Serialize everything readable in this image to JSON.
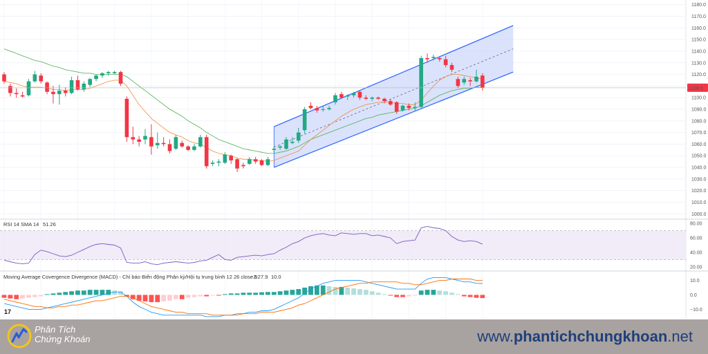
{
  "chart_data": [
    {
      "type": "candlestick",
      "price_axis": {
        "ticks": [
          1000.0,
          1010.0,
          1020.0,
          1030.0,
          1040.0,
          1050.0,
          1060.0,
          1070.0,
          1080.0,
          1090.0,
          1100.0,
          1110.0,
          1120.0,
          1130.0,
          1140.0,
          1150.0,
          1160.0,
          1170.0,
          1180.0
        ],
        "range": [
          996,
          1184
        ],
        "last_price_label": "1108.5",
        "last_price": 1108.5,
        "last_price_color": "#f23645"
      },
      "candles": [
        {
          "o": 1120,
          "h": 1122,
          "l": 1112,
          "c": 1114
        },
        {
          "o": 1110,
          "h": 1112,
          "l": 1101,
          "c": 1104
        },
        {
          "o": 1104,
          "h": 1108,
          "l": 1100,
          "c": 1103
        },
        {
          "o": 1102,
          "h": 1105,
          "l": 1100,
          "c": 1101
        },
        {
          "o": 1102,
          "h": 1116,
          "l": 1101,
          "c": 1114
        },
        {
          "o": 1114,
          "h": 1123,
          "l": 1113,
          "c": 1120
        },
        {
          "o": 1119,
          "h": 1121,
          "l": 1112,
          "c": 1114
        },
        {
          "o": 1113,
          "h": 1114,
          "l": 1103,
          "c": 1105
        },
        {
          "o": 1105,
          "h": 1110,
          "l": 1095,
          "c": 1103
        },
        {
          "o": 1103,
          "h": 1111,
          "l": 1094,
          "c": 1106
        },
        {
          "o": 1106,
          "h": 1109,
          "l": 1101,
          "c": 1104
        },
        {
          "o": 1104,
          "h": 1118,
          "l": 1103,
          "c": 1115
        },
        {
          "o": 1115,
          "h": 1119,
          "l": 1106,
          "c": 1107
        },
        {
          "o": 1107,
          "h": 1114,
          "l": 1105,
          "c": 1112
        },
        {
          "o": 1111,
          "h": 1117,
          "l": 1109,
          "c": 1116
        },
        {
          "o": 1116,
          "h": 1120,
          "l": 1114,
          "c": 1119
        },
        {
          "o": 1119,
          "h": 1122,
          "l": 1117,
          "c": 1121
        },
        {
          "o": 1121,
          "h": 1123,
          "l": 1119,
          "c": 1122
        },
        {
          "o": 1121,
          "h": 1123,
          "l": 1120,
          "c": 1122
        },
        {
          "o": 1122,
          "h": 1123,
          "l": 1110,
          "c": 1112
        },
        {
          "o": 1099,
          "h": 1101,
          "l": 1062,
          "c": 1066
        },
        {
          "o": 1066,
          "h": 1075,
          "l": 1060,
          "c": 1064
        },
        {
          "o": 1064,
          "h": 1067,
          "l": 1058,
          "c": 1062
        },
        {
          "o": 1064,
          "h": 1073,
          "l": 1060,
          "c": 1067
        },
        {
          "o": 1066,
          "h": 1077,
          "l": 1051,
          "c": 1058
        },
        {
          "o": 1059,
          "h": 1070,
          "l": 1056,
          "c": 1061
        },
        {
          "o": 1061,
          "h": 1066,
          "l": 1058,
          "c": 1060
        },
        {
          "o": 1060,
          "h": 1064,
          "l": 1052,
          "c": 1054
        },
        {
          "o": 1056,
          "h": 1068,
          "l": 1055,
          "c": 1066
        },
        {
          "o": 1061,
          "h": 1063,
          "l": 1057,
          "c": 1058
        },
        {
          "o": 1058,
          "h": 1059,
          "l": 1054,
          "c": 1055
        },
        {
          "o": 1055,
          "h": 1060,
          "l": 1054,
          "c": 1058
        },
        {
          "o": 1058,
          "h": 1068,
          "l": 1057,
          "c": 1066
        },
        {
          "o": 1066,
          "h": 1068,
          "l": 1039,
          "c": 1041
        },
        {
          "o": 1043,
          "h": 1046,
          "l": 1041,
          "c": 1044
        },
        {
          "o": 1044,
          "h": 1047,
          "l": 1041,
          "c": 1045
        },
        {
          "o": 1044,
          "h": 1053,
          "l": 1043,
          "c": 1051
        },
        {
          "o": 1050,
          "h": 1051,
          "l": 1043,
          "c": 1046
        },
        {
          "o": 1047,
          "h": 1048,
          "l": 1036,
          "c": 1039
        },
        {
          "o": 1042,
          "h": 1044,
          "l": 1039,
          "c": 1041
        },
        {
          "o": 1043,
          "h": 1049,
          "l": 1042,
          "c": 1047
        },
        {
          "o": 1047,
          "h": 1049,
          "l": 1043,
          "c": 1045
        },
        {
          "o": 1046,
          "h": 1047,
          "l": 1041,
          "c": 1042
        },
        {
          "o": 1042,
          "h": 1049,
          "l": 1041,
          "c": 1047
        },
        {
          "o": 1055,
          "h": 1058,
          "l": 1053,
          "c": 1056
        },
        {
          "o": 1057,
          "h": 1059,
          "l": 1055,
          "c": 1058
        },
        {
          "o": 1056,
          "h": 1066,
          "l": 1055,
          "c": 1064
        },
        {
          "o": 1061,
          "h": 1066,
          "l": 1060,
          "c": 1062
        },
        {
          "o": 1063,
          "h": 1074,
          "l": 1061,
          "c": 1070
        },
        {
          "o": 1072,
          "h": 1092,
          "l": 1069,
          "c": 1090
        },
        {
          "o": 1093,
          "h": 1096,
          "l": 1090,
          "c": 1091
        },
        {
          "o": 1091,
          "h": 1093,
          "l": 1087,
          "c": 1089
        },
        {
          "o": 1090,
          "h": 1093,
          "l": 1088,
          "c": 1090
        },
        {
          "o": 1090,
          "h": 1093,
          "l": 1089,
          "c": 1091
        },
        {
          "o": 1096,
          "h": 1104,
          "l": 1094,
          "c": 1102
        },
        {
          "o": 1103,
          "h": 1105,
          "l": 1099,
          "c": 1100
        },
        {
          "o": 1101,
          "h": 1103,
          "l": 1098,
          "c": 1102
        },
        {
          "o": 1102,
          "h": 1105,
          "l": 1100,
          "c": 1104
        },
        {
          "o": 1105,
          "h": 1106,
          "l": 1098,
          "c": 1100
        },
        {
          "o": 1100,
          "h": 1102,
          "l": 1098,
          "c": 1099
        },
        {
          "o": 1099,
          "h": 1101,
          "l": 1097,
          "c": 1100
        },
        {
          "o": 1100,
          "h": 1101,
          "l": 1098,
          "c": 1099
        },
        {
          "o": 1099,
          "h": 1100,
          "l": 1095,
          "c": 1097
        },
        {
          "o": 1097,
          "h": 1099,
          "l": 1093,
          "c": 1094
        },
        {
          "o": 1096,
          "h": 1097,
          "l": 1086,
          "c": 1088
        },
        {
          "o": 1089,
          "h": 1094,
          "l": 1088,
          "c": 1093
        },
        {
          "o": 1093,
          "h": 1095,
          "l": 1089,
          "c": 1091
        },
        {
          "o": 1091,
          "h": 1096,
          "l": 1089,
          "c": 1092
        },
        {
          "o": 1092,
          "h": 1136,
          "l": 1091,
          "c": 1134
        },
        {
          "o": 1134,
          "h": 1138,
          "l": 1130,
          "c": 1133
        },
        {
          "o": 1134,
          "h": 1137,
          "l": 1132,
          "c": 1135
        },
        {
          "o": 1134,
          "h": 1135,
          "l": 1131,
          "c": 1133
        },
        {
          "o": 1133,
          "h": 1136,
          "l": 1126,
          "c": 1128
        },
        {
          "o": 1128,
          "h": 1130,
          "l": 1122,
          "c": 1124
        },
        {
          "o": 1116,
          "h": 1118,
          "l": 1108,
          "c": 1110
        },
        {
          "o": 1113,
          "h": 1118,
          "l": 1111,
          "c": 1116
        },
        {
          "o": 1115,
          "h": 1117,
          "l": 1110,
          "c": 1114
        },
        {
          "o": 1114,
          "h": 1124,
          "l": 1113,
          "c": 1118
        },
        {
          "o": 1119,
          "h": 1121,
          "l": 1106,
          "c": 1108.5
        }
      ],
      "ma_orange": [
        1114,
        1113,
        1112,
        1110,
        1109,
        1109,
        1109,
        1108,
        1107,
        1107,
        1106,
        1107,
        1107,
        1107,
        1108,
        1110,
        1112,
        1114,
        1115,
        1115,
        1110,
        1102,
        1094,
        1088,
        1082,
        1078,
        1074,
        1070,
        1068,
        1066,
        1063,
        1061,
        1060,
        1057,
        1054,
        1052,
        1051,
        1050,
        1048,
        1047,
        1047,
        1046,
        1046,
        1045,
        1046,
        1048,
        1050,
        1052,
        1054,
        1059,
        1064,
        1068,
        1072,
        1076,
        1080,
        1084,
        1087,
        1090,
        1092,
        1094,
        1095,
        1096,
        1096,
        1096,
        1095,
        1095,
        1094,
        1094,
        1098,
        1104,
        1110,
        1115,
        1118,
        1120,
        1120,
        1119,
        1118,
        1117,
        1116
      ],
      "ma_green": [
        1142,
        1140,
        1138,
        1136,
        1134,
        1132,
        1131,
        1129,
        1127,
        1126,
        1124,
        1123,
        1122,
        1121,
        1121,
        1120,
        1120,
        1120,
        1120,
        1120,
        1118,
        1114,
        1110,
        1106,
        1102,
        1098,
        1094,
        1090,
        1087,
        1084,
        1080,
        1077,
        1074,
        1070,
        1067,
        1064,
        1062,
        1060,
        1058,
        1056,
        1055,
        1054,
        1053,
        1052,
        1052,
        1053,
        1054,
        1056,
        1058,
        1061,
        1064,
        1066,
        1068,
        1070,
        1072,
        1074,
        1076,
        1078,
        1080,
        1082,
        1083,
        1085,
        1086,
        1087,
        1088,
        1089,
        1090,
        1091,
        1093,
        1096,
        1099,
        1102,
        1104,
        1106,
        1107,
        1108,
        1108,
        1109,
        1109
      ],
      "channel": {
        "start_index": 44,
        "end_index": 83,
        "upper_start": 1075,
        "upper_end": 1162,
        "lower_start": 1040,
        "lower_end": 1122
      },
      "rsi": {
        "label": "RSI 14 SMA 14",
        "value": "51.26",
        "ticks": [
          20.0,
          40.0,
          60.0,
          80.0
        ],
        "tick_labels": [
          "20.00",
          "40.00",
          "60.00",
          "80.00"
        ],
        "upper_band": 70,
        "lower_band": 30,
        "values": [
          29,
          27,
          25,
          24,
          25,
          37,
          43,
          41,
          38,
          35,
          34,
          36,
          40,
          44,
          48,
          51,
          52,
          51,
          50,
          46,
          26,
          25,
          25,
          27,
          24,
          23,
          25,
          26,
          27,
          26,
          25,
          26,
          28,
          29,
          33,
          37,
          30,
          29,
          33,
          34,
          35,
          36,
          35,
          37,
          38,
          43,
          47,
          52,
          55,
          60,
          63,
          65,
          66,
          64,
          63,
          67,
          66,
          65,
          66,
          66,
          63,
          64,
          62,
          60,
          52,
          55,
          56,
          57,
          74,
          76,
          74,
          73,
          70,
          62,
          57,
          55,
          56,
          55,
          51.26
        ]
      },
      "macd": {
        "label": "Moving Average Covergence Divergence (MACD) - Chỉ báo Biến động Phân kỳ/Hội tụ trung bình 12 26 close 9",
        "values_text": [
          "−2.2",
          "7.9",
          "10.0"
        ],
        "value_colors": [
          "#f23645",
          "#2962ff",
          "#ff9800"
        ],
        "ticks": [
          -10.0,
          0.0,
          10.0
        ],
        "tick_labels": [
          "−10.0",
          "0.0",
          "10.0"
        ],
        "hist": [
          -2,
          -2.5,
          -3,
          -2.5,
          -2,
          -1.5,
          -1,
          0.5,
          1,
          1.5,
          2,
          2.5,
          3,
          3,
          3.5,
          3.5,
          3.5,
          3.5,
          3,
          2.5,
          -1,
          -3,
          -4,
          -4.5,
          -5,
          -5,
          -4.5,
          -4,
          -3,
          -3,
          -2,
          -1.5,
          -1,
          -1,
          -0.5,
          -0.5,
          0.5,
          1,
          1,
          1.5,
          1.5,
          1.5,
          1.8,
          2,
          2,
          2.5,
          3,
          3.5,
          4,
          5,
          6,
          6.5,
          6.5,
          6,
          5.5,
          5.5,
          5,
          4.5,
          4,
          3.5,
          2.5,
          1.5,
          0.5,
          -0.5,
          -1.5,
          -1.5,
          -1,
          -0.5,
          3,
          3.5,
          3.5,
          3,
          2.5,
          1.5,
          0.5,
          -1,
          -1.5,
          -2,
          -2.2
        ],
        "macd_line": [
          -6,
          -7,
          -8,
          -9,
          -10,
          -10,
          -10,
          -9,
          -8,
          -7,
          -6,
          -5,
          -4,
          -3,
          -2,
          -1,
          0,
          1,
          2,
          2,
          -1,
          -5,
          -8,
          -10,
          -12,
          -13,
          -14,
          -14,
          -14,
          -14,
          -14,
          -14,
          -14,
          -15,
          -15,
          -15,
          -14,
          -14,
          -13,
          -13,
          -12,
          -12,
          -11,
          -11,
          -10,
          -8,
          -6,
          -4,
          -2,
          1,
          4,
          6,
          8,
          9,
          10,
          10,
          10,
          10,
          10,
          9,
          8,
          7,
          6,
          5,
          4,
          4,
          4,
          4,
          8,
          11,
          12,
          12,
          12,
          11,
          10,
          9,
          9,
          8,
          7.9
        ],
        "signal_line": [
          -3,
          -4,
          -5,
          -6,
          -7,
          -8,
          -8,
          -9,
          -9,
          -8,
          -8,
          -7,
          -7,
          -6,
          -5,
          -4,
          -4,
          -3,
          -2,
          -1,
          -1,
          -2,
          -4,
          -6,
          -8,
          -9,
          -10,
          -11,
          -12,
          -12,
          -13,
          -13,
          -13,
          -13,
          -14,
          -14,
          -14,
          -14,
          -14,
          -13,
          -13,
          -13,
          -12,
          -12,
          -12,
          -11,
          -10,
          -9,
          -7,
          -6,
          -4,
          -2,
          0,
          2,
          4,
          5,
          6,
          7,
          8,
          8,
          9,
          9,
          9,
          9,
          9,
          8,
          8,
          7,
          7,
          8,
          9,
          10,
          10,
          11,
          11,
          11,
          11,
          10,
          10.0
        ]
      },
      "colors": {
        "up": "#22a884",
        "down": "#f23645",
        "ma_orange": "#f28c38",
        "ma_green": "#4caf50",
        "channel_line": "#2962ff",
        "channel_fill": "#cfd8fb",
        "rsi_line": "#7e57c2",
        "rsi_band": "#ede7f6",
        "macd_up": "#26a69a",
        "macd_up_light": "#b2dfdb",
        "macd_down": "#ff5252",
        "macd_down_light": "#ffcdd2",
        "macd_line": "#2196f3",
        "signal_line": "#ff6d00"
      }
    }
  ],
  "branding": {
    "logo_text_line1": "Phân Tích",
    "logo_text_line2": "Chứng Khoán",
    "url_prefix": "www.",
    "url_main": "phantichchungkhoan",
    "url_suffix": ".net",
    "tv_mark": "17"
  }
}
